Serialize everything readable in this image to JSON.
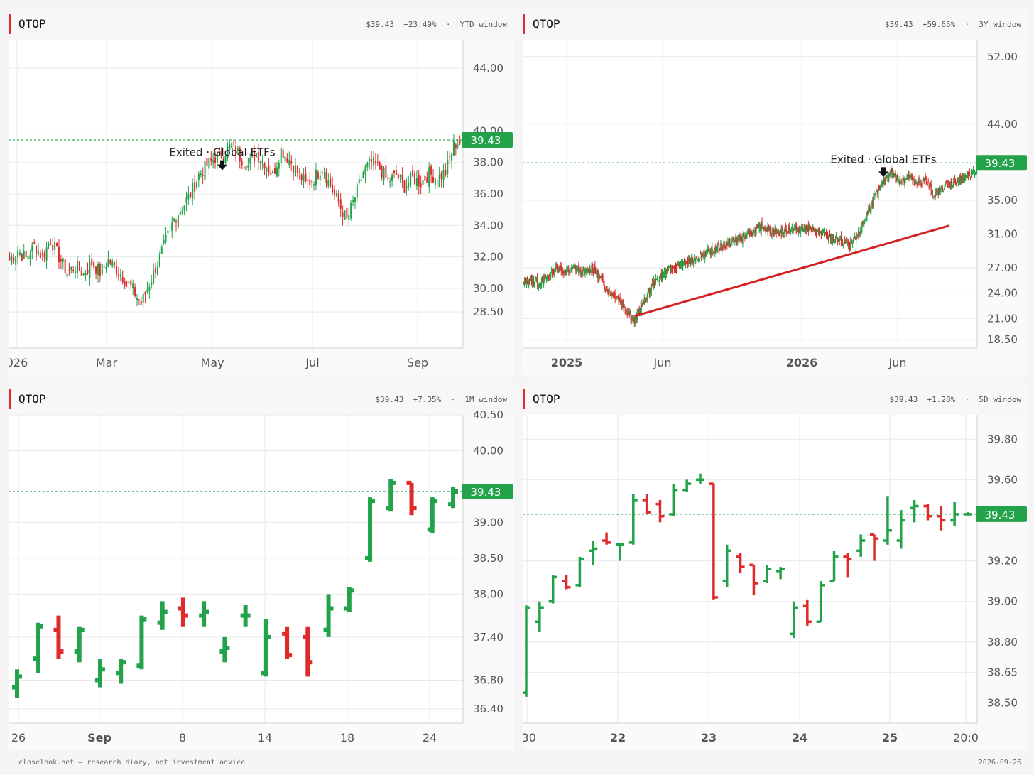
{
  "colors": {
    "up": "#22a249",
    "down": "#e02a2a",
    "grid": "#e9e9e9",
    "axis_text": "#555555",
    "accent": "#e12a2a"
  },
  "footer": {
    "left": "closelook.net — research diary, not investment advice",
    "right": "2026-09-26"
  },
  "chart_data": [
    {
      "type": "candlestick",
      "symbol": "QTOP",
      "header": {
        "symbol": "QTOP",
        "price": "$39.43",
        "change": "+23.49%",
        "window": "YTD window"
      },
      "last_price": 39.43,
      "last_label": "39.43",
      "ylim": [
        26.2,
        45.8
      ],
      "y_ticks": [
        44.0,
        40.0,
        38.0,
        36.0,
        34.0,
        32.0,
        30.0,
        28.5
      ],
      "y_tick_labels": [
        "44.00",
        "40.00",
        "38.00",
        "36.00",
        "34.00",
        "32.00",
        "30.00",
        "28.50"
      ],
      "x_ticks": [
        "026",
        "Mar",
        "May",
        "Jul",
        "Sep"
      ],
      "annotation": {
        "text": "Exited · Global ETFs",
        "at_value": 37.6
      },
      "path": [
        31.8,
        32.4,
        31.9,
        32.7,
        32.0,
        33.1,
        32.0,
        31.0,
        31.4,
        30.9,
        31.6,
        31.0,
        31.8,
        31.2,
        30.6,
        29.9,
        29.0,
        30.3,
        31.6,
        33.0,
        34.4,
        35.2,
        36.0,
        37.2,
        37.8,
        38.3,
        38.6,
        39.1,
        38.4,
        37.8,
        38.6,
        38.0,
        37.2,
        38.8,
        38.2,
        37.4,
        36.6,
        37.0,
        37.7,
        36.5,
        35.4,
        34.3,
        35.8,
        37.4,
        38.0,
        37.6,
        36.8,
        37.2,
        36.5,
        37.0,
        36.7,
        37.3,
        37.0,
        37.4,
        39.1,
        39.4
      ]
    },
    {
      "type": "candlestick",
      "symbol": "QTOP",
      "header": {
        "symbol": "QTOP",
        "price": "$39.43",
        "change": "+59.65%",
        "window": "3Y window"
      },
      "last_price": 39.43,
      "last_label": "39.43",
      "ylim": [
        17.5,
        54.0
      ],
      "y_ticks": [
        52.0,
        44.0,
        35.0,
        31.0,
        27.0,
        24.0,
        21.0,
        18.5
      ],
      "y_tick_labels": [
        "52.00",
        "44.00",
        "35.00",
        "31.00",
        "27.00",
        "24.00",
        "21.00",
        "18.50"
      ],
      "x_ticks": [
        "2025",
        "Jun",
        "2026",
        "Jun"
      ],
      "annotation": {
        "text": "Exited · Global ETFs",
        "at_value": 37.9
      },
      "trendline": [
        [
          21.3
        ],
        [
          32.0
        ]
      ],
      "path": [
        25.0,
        25.6,
        25.2,
        26.0,
        27.2,
        26.4,
        27.0,
        26.3,
        27.1,
        25.8,
        24.2,
        23.6,
        22.2,
        20.6,
        22.8,
        24.8,
        26.0,
        26.8,
        27.0,
        27.6,
        28.0,
        28.6,
        29.0,
        29.4,
        29.9,
        30.3,
        30.7,
        31.2,
        31.9,
        31.4,
        31.1,
        31.6,
        31.5,
        31.8,
        31.3,
        31.0,
        30.6,
        30.2,
        29.6,
        30.5,
        33.0,
        35.2,
        37.0,
        38.4,
        37.2,
        37.8,
        36.9,
        37.5,
        35.4,
        36.5,
        37.0,
        37.4,
        37.8,
        38.4
      ]
    },
    {
      "type": "ohlc",
      "symbol": "QTOP",
      "header": {
        "symbol": "QTOP",
        "price": "$39.43",
        "change": "+7.35%",
        "window": "1M window"
      },
      "last_price": 39.43,
      "last_label": "39.43",
      "ylim": [
        36.2,
        40.5
      ],
      "y_ticks": [
        40.5,
        40.0,
        39.0,
        38.5,
        38.0,
        37.4,
        36.8,
        36.4
      ],
      "y_tick_labels": [
        "40.50",
        "40.00",
        "39.00",
        "38.50",
        "38.00",
        "37.40",
        "36.80",
        "36.40"
      ],
      "x_ticks": [
        "26",
        "Sep",
        "8",
        "14",
        "18",
        "24"
      ],
      "bars": [
        [
          36.7,
          36.95,
          36.55,
          36.85
        ],
        [
          37.1,
          37.6,
          36.9,
          37.55
        ],
        [
          37.5,
          37.7,
          37.1,
          37.2
        ],
        [
          37.2,
          37.55,
          37.05,
          37.5
        ],
        [
          36.8,
          37.1,
          36.7,
          36.95
        ],
        [
          36.9,
          37.1,
          36.75,
          37.05
        ],
        [
          37.0,
          37.7,
          36.95,
          37.65
        ],
        [
          37.6,
          37.9,
          37.5,
          37.75
        ],
        [
          37.8,
          37.95,
          37.55,
          37.7
        ],
        [
          37.7,
          37.9,
          37.55,
          37.75
        ],
        [
          37.2,
          37.4,
          37.05,
          37.25
        ],
        [
          37.7,
          37.85,
          37.55,
          37.7
        ],
        [
          36.9,
          37.65,
          36.85,
          37.4
        ],
        [
          37.45,
          37.55,
          37.1,
          37.15
        ],
        [
          37.4,
          37.55,
          36.85,
          37.05
        ],
        [
          37.5,
          38.0,
          37.4,
          37.8
        ],
        [
          37.8,
          38.1,
          37.75,
          38.05
        ],
        [
          38.5,
          39.35,
          38.45,
          39.3
        ],
        [
          39.2,
          39.6,
          39.15,
          39.55
        ],
        [
          39.55,
          39.55,
          39.1,
          39.2
        ],
        [
          38.9,
          39.35,
          38.85,
          39.3
        ],
        [
          39.25,
          39.5,
          39.2,
          39.43
        ]
      ]
    },
    {
      "type": "ohlc",
      "symbol": "QTOP",
      "header": {
        "symbol": "QTOP",
        "price": "$39.43",
        "change": "+1.28%",
        "window": "5D window"
      },
      "last_price": 39.43,
      "last_label": "39.43",
      "ylim": [
        38.4,
        39.92
      ],
      "y_ticks": [
        39.8,
        39.6,
        39.2,
        39.0,
        38.8,
        38.65,
        38.5
      ],
      "y_tick_labels": [
        "39.80",
        "39.60",
        "39.20",
        "39.00",
        "38.80",
        "38.65",
        "38.50"
      ],
      "x_ticks": [
        ":30",
        "22",
        "23",
        "24",
        "25",
        "20:0"
      ],
      "bars": [
        [
          38.55,
          38.98,
          38.53,
          38.97
        ],
        [
          38.9,
          39.0,
          38.85,
          38.97
        ],
        [
          39.0,
          39.13,
          38.99,
          39.12
        ],
        [
          39.1,
          39.13,
          39.06,
          39.07
        ],
        [
          39.08,
          39.22,
          39.07,
          39.21
        ],
        [
          39.25,
          39.3,
          39.18,
          39.26
        ],
        [
          39.3,
          39.34,
          39.28,
          39.29
        ],
        [
          39.28,
          39.29,
          39.2,
          39.28
        ],
        [
          39.29,
          39.53,
          39.28,
          39.5
        ],
        [
          39.5,
          39.53,
          39.43,
          39.44
        ],
        [
          39.48,
          39.5,
          39.39,
          39.42
        ],
        [
          39.43,
          39.58,
          39.42,
          39.55
        ],
        [
          39.55,
          39.6,
          39.54,
          39.58
        ],
        [
          39.6,
          39.63,
          39.58,
          39.6
        ],
        [
          39.58,
          39.58,
          39.01,
          39.02
        ],
        [
          39.1,
          39.28,
          39.07,
          39.25
        ],
        [
          39.22,
          39.24,
          39.14,
          39.17
        ],
        [
          39.18,
          39.18,
          39.03,
          39.09
        ],
        [
          39.1,
          39.18,
          39.09,
          39.16
        ],
        [
          39.15,
          39.17,
          39.11,
          39.16
        ],
        [
          38.84,
          39.0,
          38.82,
          38.97
        ],
        [
          38.98,
          39.01,
          38.88,
          38.9
        ],
        [
          38.9,
          39.1,
          38.9,
          39.08
        ],
        [
          39.1,
          39.25,
          39.1,
          39.22
        ],
        [
          39.22,
          39.24,
          39.12,
          39.21
        ],
        [
          39.25,
          39.33,
          39.22,
          39.3
        ],
        [
          39.33,
          39.33,
          39.2,
          39.31
        ],
        [
          39.3,
          39.52,
          39.28,
          39.35
        ],
        [
          39.3,
          39.45,
          39.26,
          39.4
        ],
        [
          39.46,
          39.5,
          39.39,
          39.47
        ],
        [
          39.47,
          39.48,
          39.4,
          39.42
        ],
        [
          39.42,
          39.47,
          39.35,
          39.4
        ],
        [
          39.4,
          39.49,
          39.37,
          39.43
        ],
        [
          39.43,
          39.44,
          39.42,
          39.43
        ]
      ]
    }
  ]
}
